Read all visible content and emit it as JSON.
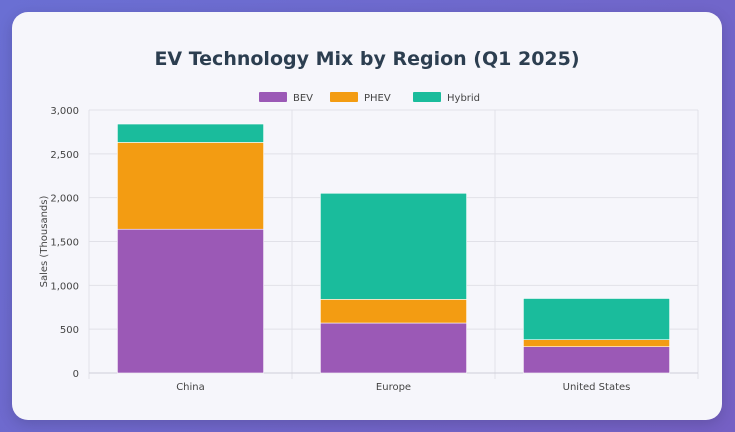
{
  "chart_data": {
    "type": "bar",
    "stacked": true,
    "title": "EV Technology Mix by Region (Q1 2025)",
    "xlabel": "",
    "ylabel": "Sales (Thousands)",
    "ylim": [
      0,
      3000
    ],
    "yticks": [
      0,
      500,
      1000,
      1500,
      2000,
      2500,
      3000
    ],
    "ytick_labels": [
      "0",
      "500",
      "1,000",
      "1,500",
      "2,000",
      "2,500",
      "3,000"
    ],
    "categories": [
      "China",
      "Europe",
      "United States"
    ],
    "series": [
      {
        "name": "BEV",
        "color": "#9b59b6",
        "values": [
          1640,
          570,
          300
        ]
      },
      {
        "name": "PHEV",
        "color": "#f39c12",
        "values": [
          990,
          270,
          80
        ]
      },
      {
        "name": "Hybrid",
        "color": "#1abc9c",
        "values": [
          210,
          1210,
          470
        ]
      }
    ],
    "legend_position": "top-center",
    "grid": true
  }
}
